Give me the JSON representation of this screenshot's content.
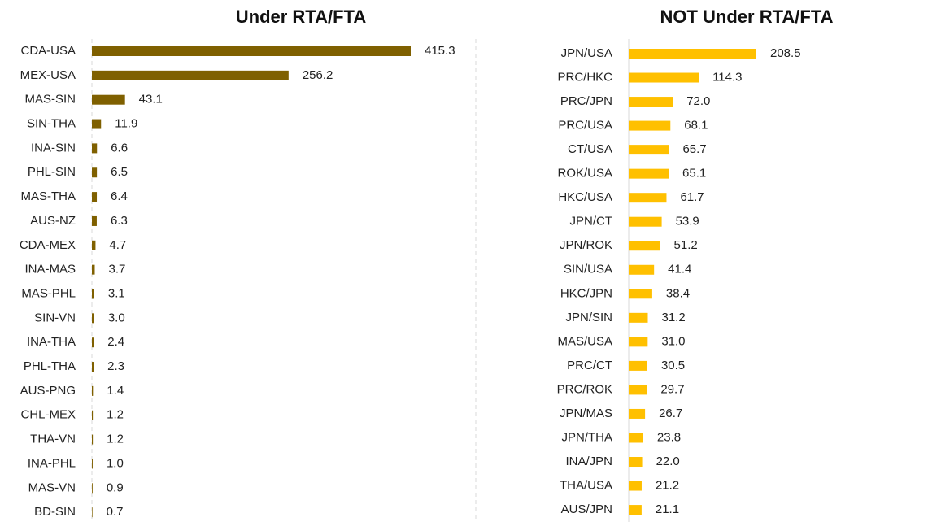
{
  "chart_data": [
    {
      "type": "bar",
      "title": "Under RTA/FTA",
      "color": "#7f6000",
      "categories": [
        "CDA-USA",
        "MEX-USA",
        "MAS-SIN",
        "SIN-THA",
        "INA-SIN",
        "PHL-SIN",
        "MAS-THA",
        "AUS-NZ",
        "CDA-MEX",
        "INA-MAS",
        "MAS-PHL",
        "SIN-VN",
        "INA-THA",
        "PHL-THA",
        "AUS-PNG",
        "CHL-MEX",
        "THA-VN",
        "INA-PHL",
        "MAS-VN",
        "BD-SIN"
      ],
      "values": [
        415.3,
        256.2,
        43.1,
        11.9,
        6.6,
        6.5,
        6.4,
        6.3,
        4.7,
        3.7,
        3.1,
        3.0,
        2.4,
        2.3,
        1.4,
        1.2,
        1.2,
        1.0,
        0.9,
        0.7
      ],
      "value_labels": [
        "415.3",
        "256.2",
        "43.1",
        "11.9",
        "6.6",
        "6.5",
        "6.4",
        "6.3",
        "4.7",
        "3.7",
        "3.1",
        "3.0",
        "2.4",
        "2.3",
        "1.4",
        "1.2",
        "1.2",
        "1.0",
        "0.9",
        "0.7"
      ]
    },
    {
      "type": "bar",
      "title": "NOT Under RTA/FTA",
      "color": "#ffc000",
      "categories": [
        "JPN/USA",
        "PRC/HKC",
        "PRC/JPN",
        "PRC/USA",
        "CT/USA",
        "ROK/USA",
        "HKC/USA",
        "JPN/CT",
        "JPN/ROK",
        "SIN/USA",
        "HKC/JPN",
        "JPN/SIN",
        "MAS/USA",
        "PRC/CT",
        "PRC/ROK",
        "JPN/MAS",
        "JPN/THA",
        "INA/JPN",
        "THA/USA",
        "AUS/JPN"
      ],
      "values": [
        208.5,
        114.3,
        72.0,
        68.1,
        65.7,
        65.1,
        61.7,
        53.9,
        51.2,
        41.4,
        38.4,
        31.2,
        31.0,
        30.5,
        29.7,
        26.7,
        23.8,
        22.0,
        21.2,
        21.1
      ],
      "value_labels": [
        "208.5",
        "114.3",
        "72.0",
        "68.1",
        "65.7",
        "65.1",
        "61.7",
        "53.9",
        "51.2",
        "41.4",
        "38.4",
        "31.2",
        "31.0",
        "30.5",
        "29.7",
        "26.7",
        "23.8",
        "22.0",
        "21.2",
        "21.1"
      ]
    }
  ]
}
